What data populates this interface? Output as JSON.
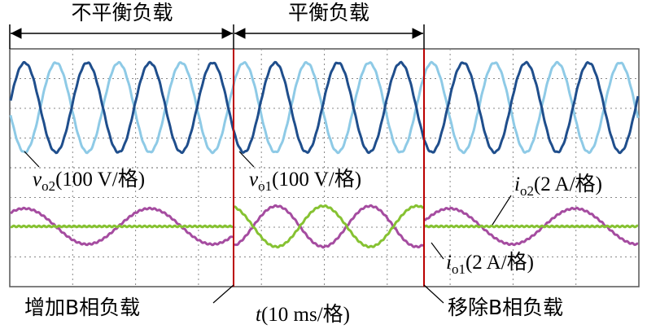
{
  "regions": {
    "unbalanced": "不平衡负载",
    "balanced": "平衡负载"
  },
  "signals": {
    "vo2": {
      "symbol": "v",
      "subscript": "o2",
      "scale": "(100 V/格)"
    },
    "vo1": {
      "symbol": "v",
      "subscript": "o1",
      "scale": "(100 V/格)"
    },
    "io2": {
      "symbol": "i",
      "subscript": "o2",
      "scale": "(2 A/格)"
    },
    "io1": {
      "symbol": "i",
      "subscript": "o1",
      "scale": "(2 A/格)"
    }
  },
  "events": {
    "add": "增加B相负载",
    "remove": "移除B相负载"
  },
  "time_axis": {
    "symbol": "t",
    "scale": "(10 ms/格)"
  }
}
